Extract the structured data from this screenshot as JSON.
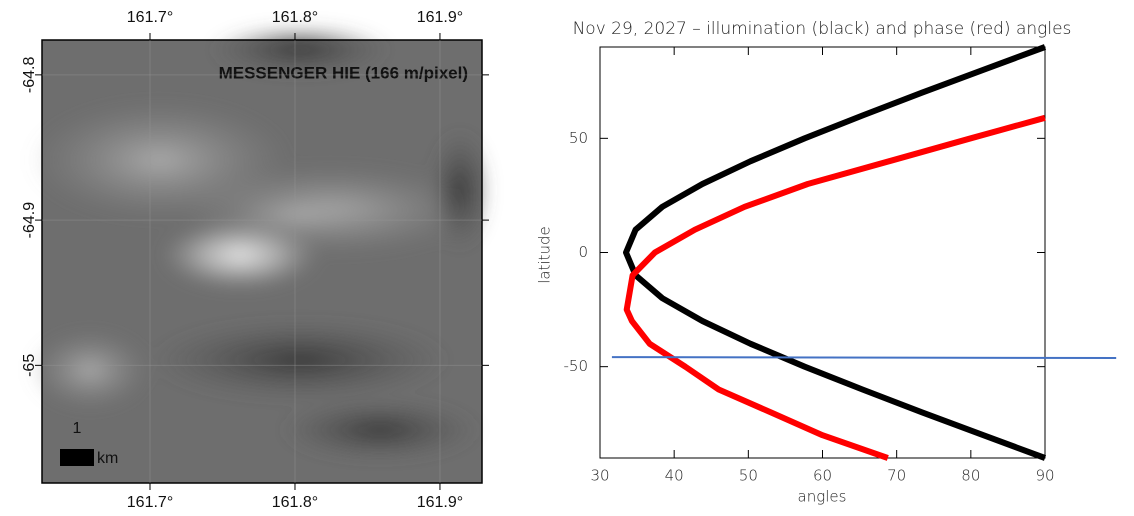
{
  "chart_data": [
    {
      "type": "image",
      "title": "MESSENGER HIE (166 m/pixel)",
      "scale_bar_value": "1",
      "scale_bar_unit": "km",
      "xlim": [
        161.6255,
        161.929
      ],
      "ylim": [
        -65.081,
        -64.776
      ],
      "xticks": [
        {
          "value": 161.7,
          "label": "161.7°"
        },
        {
          "value": 161.8,
          "label": "161.8°"
        },
        {
          "value": 161.9,
          "label": "161.9°"
        }
      ],
      "yticks": [
        -64.8,
        -64.9,
        -65
      ],
      "grid": true
    },
    {
      "type": "line",
      "title": "Nov 29, 2027 – illumination (black) and phase (red) angles",
      "x_label": "angles",
      "y_label": "latitude",
      "xlim": [
        30,
        90
      ],
      "ylim": [
        -90,
        90
      ],
      "xticks": [
        30,
        40,
        50,
        60,
        70,
        80,
        90
      ],
      "yticks": [
        -50,
        0,
        50
      ],
      "series": [
        {
          "color": "#000000",
          "x": [
            90,
            81.7,
            73.4,
            65.4,
            57.6,
            50.3,
            43.8,
            38.4,
            34.8,
            33.5,
            34.8,
            38.4,
            43.8,
            50.3,
            57.6,
            65.4,
            73.4,
            81.7,
            90
          ],
          "y": [
            -90,
            -80,
            -70,
            -60,
            -50,
            -40,
            -30,
            -20,
            -10,
            0,
            10,
            20,
            30,
            40,
            50,
            60,
            70,
            80,
            90
          ]
        },
        {
          "color": "#ff0000",
          "x": [
            68.8,
            60,
            53,
            46,
            41.5,
            36.7,
            34.3,
            33.6,
            34.4,
            37.4,
            42.8,
            49.5,
            58,
            69,
            80,
            90
          ],
          "y": [
            -90,
            -80,
            -70,
            -60,
            -50,
            -40,
            -30,
            -25,
            -10,
            0,
            10,
            20,
            30,
            40,
            50,
            59
          ]
        },
        {
          "color": "#4472c4",
          "x": [
            31.6,
            99.6
          ],
          "y": [
            -45.8,
            -46.2
          ]
        }
      ]
    }
  ]
}
